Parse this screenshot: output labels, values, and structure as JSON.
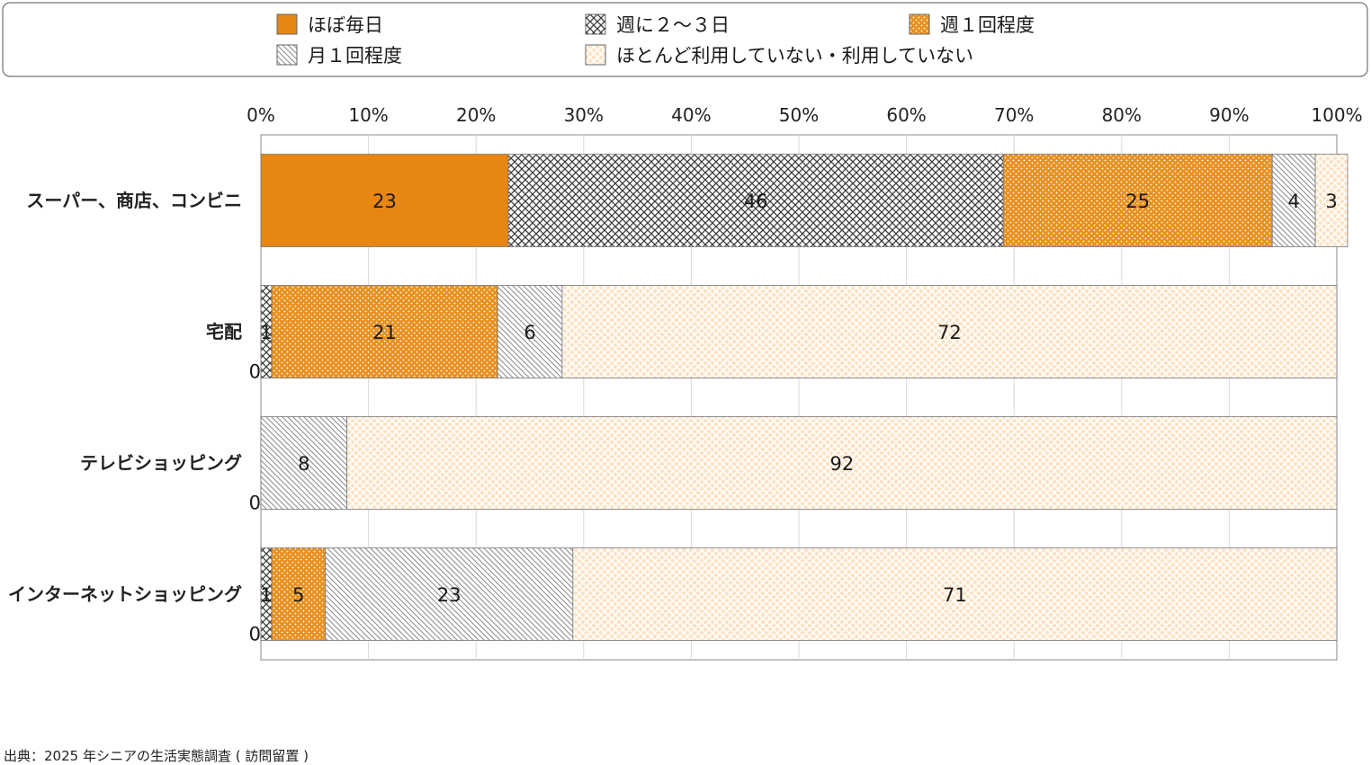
{
  "chart_data": {
    "type": "bar",
    "orientation": "horizontal",
    "stacked": true,
    "percent": true,
    "xlim": [
      0,
      100
    ],
    "ticks": [
      "0%",
      "10%",
      "20%",
      "30%",
      "40%",
      "50%",
      "60%",
      "70%",
      "80%",
      "90%",
      "100%"
    ],
    "grid": true,
    "legend_position": "top",
    "categories": [
      "スーパー、商店、コンビニ",
      "宅配",
      "テレビショッピング",
      "インターネットショッピング"
    ],
    "series": [
      {
        "name": "ほぼ毎日",
        "values": [
          23,
          0,
          0,
          0
        ],
        "labels": [
          "23",
          "0",
          "0",
          "0"
        ],
        "color": "#E88614",
        "pattern": "solid"
      },
      {
        "name": "週に２～３日",
        "values": [
          46,
          1,
          0,
          1
        ],
        "labels": [
          "46",
          "1",
          "",
          "1"
        ],
        "color": "#444444",
        "pattern": "crosshatch"
      },
      {
        "name": "週１回程度",
        "values": [
          25,
          21,
          0,
          5
        ],
        "labels": [
          "25",
          "21",
          "",
          "5"
        ],
        "color": "#E88614",
        "pattern": "dots"
      },
      {
        "name": "月１回程度",
        "values": [
          4,
          6,
          8,
          23
        ],
        "labels": [
          "4",
          "6",
          "8",
          "23"
        ],
        "color": "#888888",
        "pattern": "diagonal"
      },
      {
        "name": "ほとんど利用していない・利用していない",
        "values": [
          3,
          72,
          92,
          71
        ],
        "labels": [
          "3",
          "72",
          "92",
          "71"
        ],
        "color": "#F3A94E",
        "pattern": "light-crosshatch"
      }
    ]
  },
  "source": "出典：2025 年シニアの生活実態調査 ( 訪問留置 )"
}
